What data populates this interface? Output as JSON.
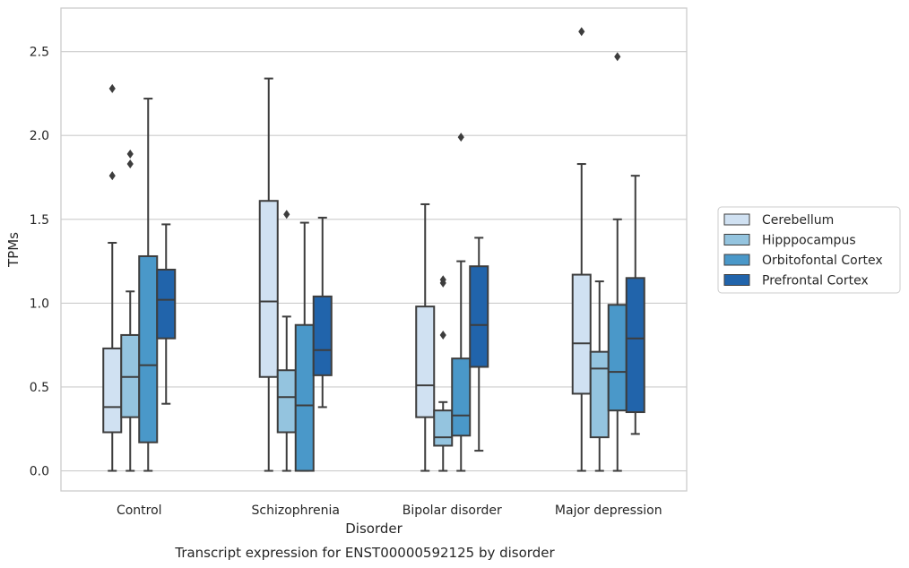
{
  "chart_data": {
    "type": "box",
    "title": "",
    "caption": "Transcript expression for ENST00000592125 by disorder",
    "xlabel": "Disorder",
    "ylabel": "TPMs",
    "ylim": [
      -0.12,
      2.76
    ],
    "yticks": [
      0.0,
      0.5,
      1.0,
      1.5,
      2.0,
      2.5
    ],
    "ytick_labels": [
      "0.0",
      "0.5",
      "1.0",
      "1.5",
      "2.0",
      "2.5"
    ],
    "grid": "horizontal",
    "legend_position": "right",
    "categories": [
      "Control",
      "Schizophrenia",
      "Bipolar disorder",
      "Major depression"
    ],
    "series": [
      {
        "name": "Cerebellum",
        "color": "#d0e1f2",
        "boxes": [
          {
            "whislo": 0.0,
            "q1": 0.23,
            "med": 0.38,
            "q3": 0.73,
            "whishi": 1.36,
            "fliers": [
              1.76,
              2.28
            ]
          },
          {
            "whislo": 0.0,
            "q1": 0.56,
            "med": 1.01,
            "q3": 1.61,
            "whishi": 2.34,
            "fliers": []
          },
          {
            "whislo": 0.0,
            "q1": 0.32,
            "med": 0.51,
            "q3": 0.98,
            "whishi": 1.59,
            "fliers": []
          },
          {
            "whislo": 0.0,
            "q1": 0.46,
            "med": 0.76,
            "q3": 1.17,
            "whishi": 1.83,
            "fliers": [
              2.62
            ]
          }
        ]
      },
      {
        "name": "Hipppocampus",
        "color": "#94c4df",
        "boxes": [
          {
            "whislo": 0.0,
            "q1": 0.32,
            "med": 0.56,
            "q3": 0.81,
            "whishi": 1.07,
            "fliers": [
              1.83,
              1.89
            ]
          },
          {
            "whislo": 0.0,
            "q1": 0.23,
            "med": 0.44,
            "q3": 0.6,
            "whishi": 0.92,
            "fliers": [
              1.53
            ]
          },
          {
            "whislo": 0.0,
            "q1": 0.15,
            "med": 0.2,
            "q3": 0.36,
            "whishi": 0.41,
            "fliers": [
              0.81,
              1.12,
              1.14
            ]
          },
          {
            "whislo": 0.0,
            "q1": 0.2,
            "med": 0.61,
            "q3": 0.71,
            "whishi": 1.13,
            "fliers": []
          }
        ]
      },
      {
        "name": "Orbitofontal Cortex",
        "color": "#4a98c9",
        "boxes": [
          {
            "whislo": 0.0,
            "q1": 0.17,
            "med": 0.63,
            "q3": 1.28,
            "whishi": 2.22,
            "fliers": []
          },
          {
            "whislo": 0.0,
            "q1": 0.0,
            "med": 0.39,
            "q3": 0.87,
            "whishi": 1.48,
            "fliers": []
          },
          {
            "whislo": 0.0,
            "q1": 0.21,
            "med": 0.33,
            "q3": 0.67,
            "whishi": 1.25,
            "fliers": [
              1.99
            ]
          },
          {
            "whislo": 0.0,
            "q1": 0.36,
            "med": 0.59,
            "q3": 0.99,
            "whishi": 1.5,
            "fliers": [
              2.47
            ]
          }
        ]
      },
      {
        "name": "Prefrontal Cortex",
        "color": "#2164ab",
        "boxes": [
          {
            "whislo": 0.4,
            "q1": 0.79,
            "med": 1.02,
            "q3": 1.2,
            "whishi": 1.47,
            "fliers": []
          },
          {
            "whislo": 0.38,
            "q1": 0.57,
            "med": 0.72,
            "q3": 1.04,
            "whishi": 1.51,
            "fliers": []
          },
          {
            "whislo": 0.12,
            "q1": 0.62,
            "med": 0.87,
            "q3": 1.22,
            "whishi": 1.39,
            "fliers": []
          },
          {
            "whislo": 0.22,
            "q1": 0.35,
            "med": 0.79,
            "q3": 1.15,
            "whishi": 1.76,
            "fliers": []
          }
        ]
      }
    ]
  }
}
